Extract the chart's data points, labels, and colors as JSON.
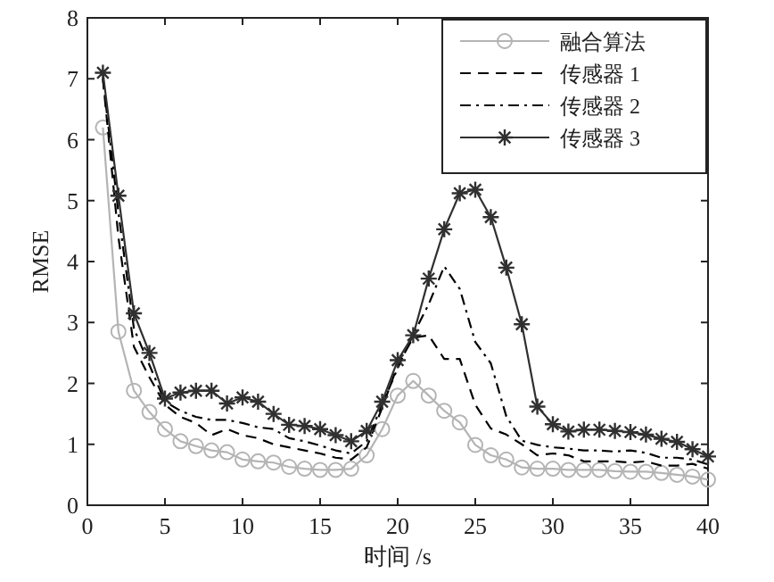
{
  "chart_data": {
    "type": "line",
    "xlabel": "时间 /s",
    "ylabel": "RMSE",
    "x": [
      1,
      2,
      3,
      4,
      5,
      6,
      7,
      8,
      9,
      10,
      11,
      12,
      13,
      14,
      15,
      16,
      17,
      18,
      19,
      20,
      21,
      22,
      23,
      24,
      25,
      26,
      27,
      28,
      29,
      30,
      31,
      32,
      33,
      34,
      35,
      36,
      37,
      38,
      39,
      40
    ],
    "xlim": [
      0,
      40
    ],
    "xticks": [
      0,
      5,
      10,
      15,
      20,
      25,
      30,
      35,
      40
    ],
    "ylim": [
      0,
      8
    ],
    "yticks": [
      0,
      1,
      2,
      3,
      4,
      5,
      6,
      7,
      8
    ],
    "grid": false,
    "legend": "top right",
    "series": [
      {
        "name": "融合算法",
        "color": "#b4b4b4",
        "marker": "circle",
        "line_style": "solid",
        "values": [
          6.2,
          2.85,
          1.88,
          1.53,
          1.25,
          1.05,
          0.97,
          0.9,
          0.87,
          0.75,
          0.72,
          0.7,
          0.63,
          0.6,
          0.58,
          0.58,
          0.6,
          0.82,
          1.25,
          1.8,
          2.04,
          1.8,
          1.55,
          1.36,
          0.99,
          0.82,
          0.75,
          0.62,
          0.6,
          0.6,
          0.58,
          0.58,
          0.58,
          0.56,
          0.55,
          0.55,
          0.53,
          0.5,
          0.47,
          0.42
        ]
      },
      {
        "name": "传感器 1",
        "color": "#000000",
        "marker": "none",
        "line_style": "dashed",
        "values": [
          7.0,
          4.4,
          2.6,
          2.1,
          1.65,
          1.45,
          1.35,
          1.15,
          1.25,
          1.15,
          1.1,
          1.0,
          0.95,
          0.9,
          0.85,
          0.78,
          0.75,
          0.95,
          1.6,
          2.3,
          2.75,
          2.79,
          2.4,
          2.4,
          1.65,
          1.26,
          1.16,
          1.0,
          0.82,
          0.85,
          0.82,
          0.72,
          0.72,
          0.72,
          0.7,
          0.72,
          0.65,
          0.65,
          0.68,
          0.6
        ]
      },
      {
        "name": "传感器 2",
        "color": "#000000",
        "marker": "none",
        "line_style": "dashdot",
        "values": [
          7.0,
          4.8,
          2.9,
          2.3,
          1.7,
          1.55,
          1.45,
          1.4,
          1.4,
          1.35,
          1.28,
          1.25,
          1.1,
          1.05,
          0.98,
          0.9,
          0.85,
          1.05,
          1.65,
          2.25,
          2.8,
          3.3,
          3.92,
          3.55,
          2.68,
          2.33,
          1.46,
          1.06,
          0.99,
          0.95,
          0.93,
          0.9,
          0.9,
          0.88,
          0.9,
          0.86,
          0.78,
          0.78,
          0.75,
          0.67
        ]
      },
      {
        "name": "传感器 3",
        "color": "#303030",
        "marker": "cross",
        "line_style": "solid",
        "values": [
          7.1,
          5.08,
          3.15,
          2.5,
          1.75,
          1.85,
          1.88,
          1.88,
          1.67,
          1.77,
          1.7,
          1.5,
          1.32,
          1.3,
          1.25,
          1.15,
          1.05,
          1.22,
          1.7,
          2.38,
          2.79,
          3.72,
          4.53,
          5.12,
          5.18,
          4.73,
          3.9,
          2.97,
          1.62,
          1.33,
          1.21,
          1.24,
          1.24,
          1.22,
          1.2,
          1.16,
          1.09,
          1.04,
          0.92,
          0.8
        ]
      }
    ]
  }
}
